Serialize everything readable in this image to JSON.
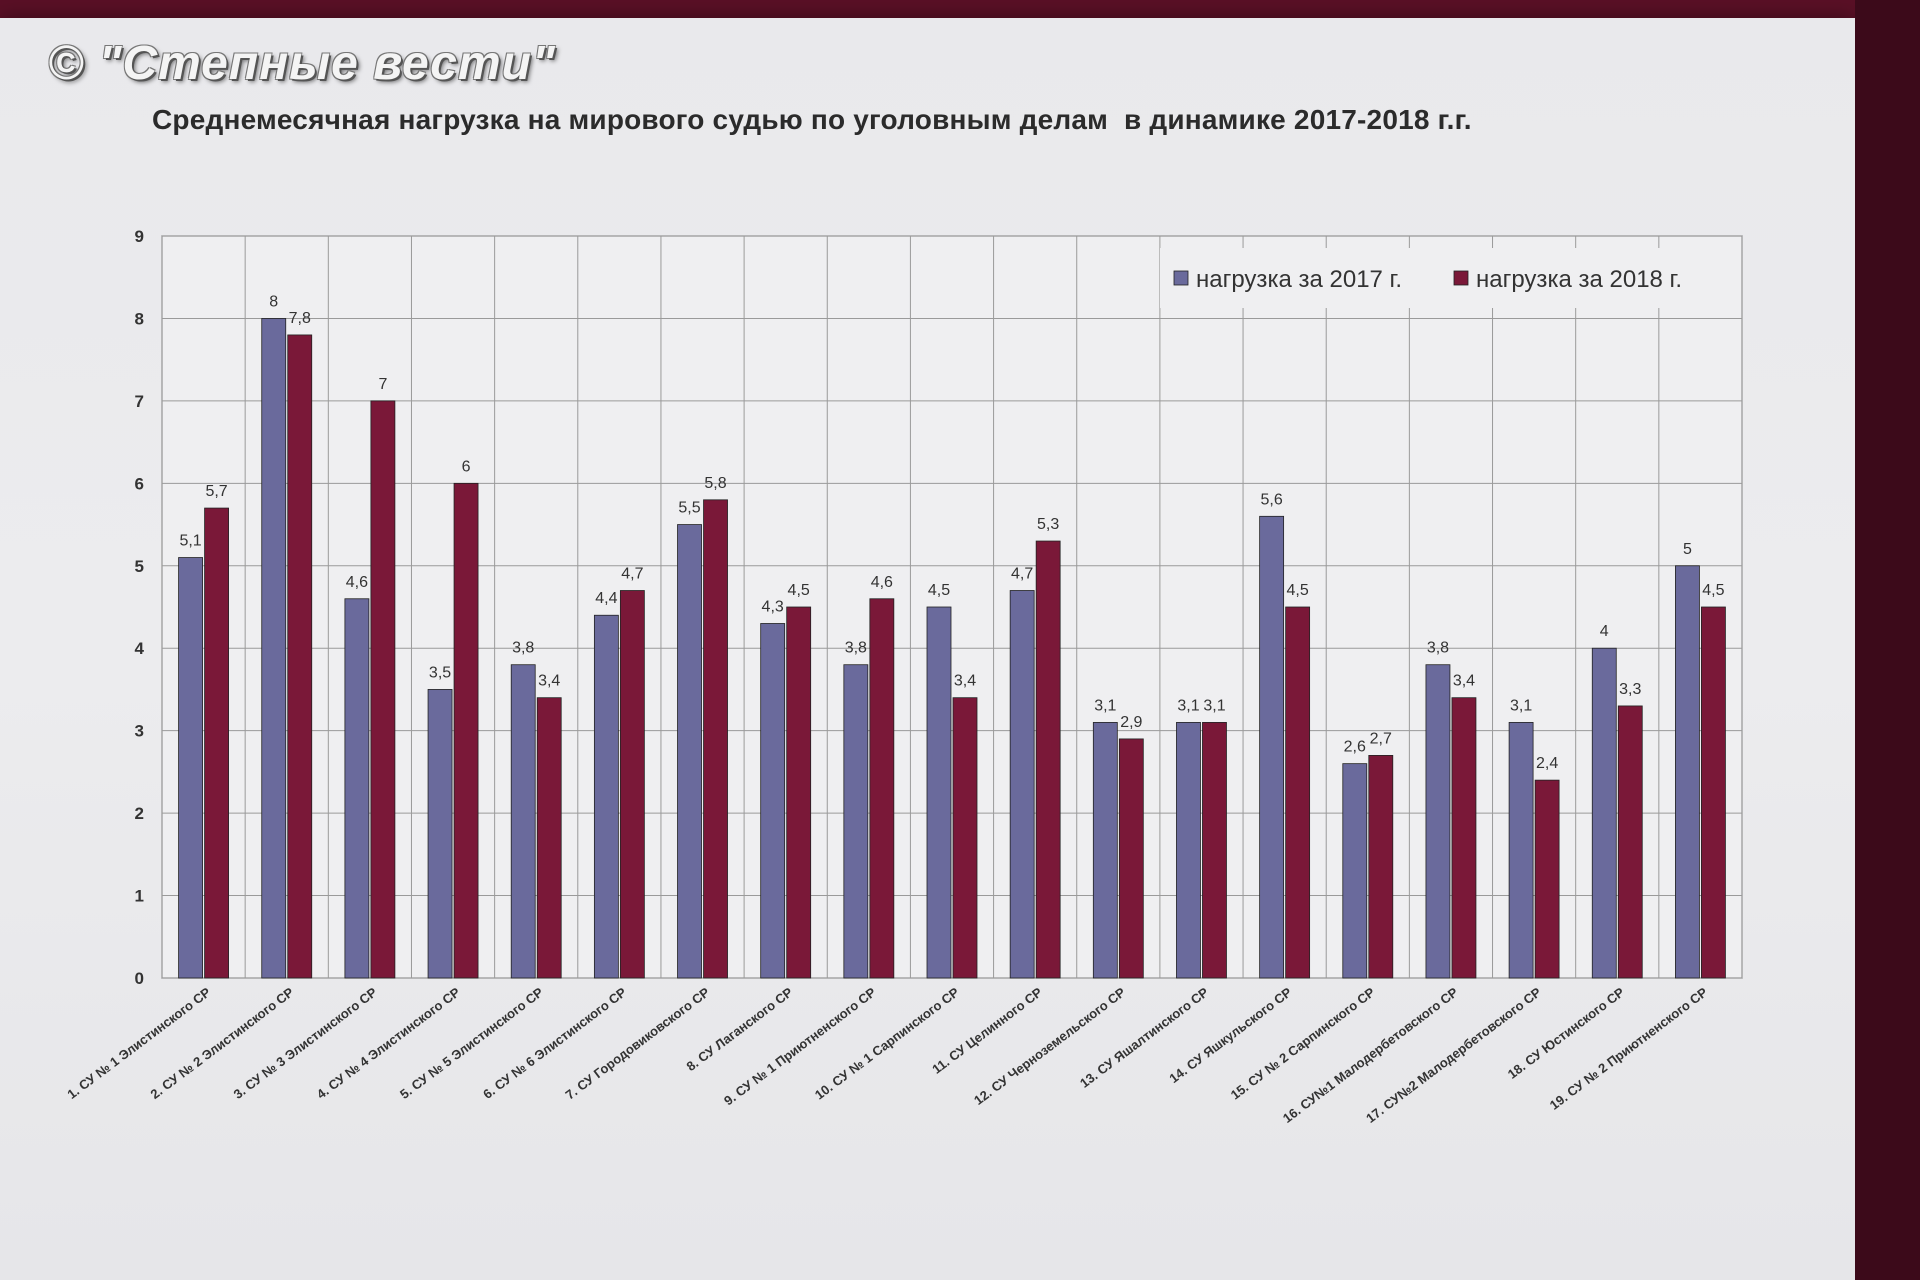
{
  "watermark": "© \"Степные вести\"",
  "chart_data": {
    "type": "bar",
    "title": "Среднемесячная нагрузка на мирового судью по уголовным делам  в динамике 2017-2018 г.г.",
    "ylim": [
      0,
      9
    ],
    "yticks": [
      "0",
      "1",
      "2",
      "3",
      "4",
      "5",
      "6",
      "7",
      "8",
      "9"
    ],
    "grid": true,
    "legend_position": "top-right",
    "categories": [
      "1. СУ № 1 Элистинского СР",
      "2. СУ № 2 Элистинского СР",
      "3. СУ № 3 Элистинского СР",
      "4. СУ № 4 Элистинского СР",
      "5. СУ № 5 Элистинского СР",
      "6. СУ № 6 Элистинского СР",
      "7. СУ Городовиковского СР",
      "8. СУ Лаганского СР",
      "9. СУ № 1 Приютненского СР",
      "10. СУ № 1 Сарпинского СР",
      "11. СУ Целинного СР",
      "12. СУ Черноземельского СР",
      "13. СУ Яшалтинского СР",
      "14. СУ Яшкульского СР",
      "15. СУ № 2 Сарпинского СР",
      "16. СУ№1 Малодербетовского СР",
      "17. СУ№2 Малодербетовского СР",
      "18. СУ Юстинского СР",
      "19. СУ № 2 Приютненского СР"
    ],
    "series": [
      {
        "name": "нагрузка за 2017 г.",
        "color": "#6a6a9c",
        "values": [
          5.1,
          8,
          4.6,
          3.5,
          3.8,
          4.4,
          5.5,
          4.3,
          3.8,
          4.5,
          4.7,
          3.1,
          3.1,
          5.6,
          2.6,
          3.8,
          3.1,
          4,
          5
        ],
        "labels": [
          "5,1",
          "8",
          "4,6",
          "3,5",
          "3,8",
          "4,4",
          "5,5",
          "4,3",
          "3,8",
          "4,5",
          "4,7",
          "3,1",
          "3,1",
          "5,6",
          "2,6",
          "3,8",
          "3,1",
          "4",
          "5"
        ]
      },
      {
        "name": "нагрузка за 2018 г.",
        "color": "#7a1838",
        "values": [
          5.7,
          7.8,
          7,
          6,
          3.4,
          4.7,
          5.8,
          4.5,
          4.6,
          3.4,
          5.3,
          2.9,
          3.1,
          4.5,
          2.7,
          3.4,
          2.4,
          3.3,
          4.5
        ],
        "labels": [
          "5,7",
          "7,8",
          "7",
          "6",
          "3,4",
          "4,7",
          "5,8",
          "4,5",
          "4,6",
          "3,4",
          "5,3",
          "2,9",
          "3,1",
          "4,5",
          "2,7",
          "3,4",
          "2,4",
          "3,3",
          "4,5"
        ]
      }
    ]
  }
}
